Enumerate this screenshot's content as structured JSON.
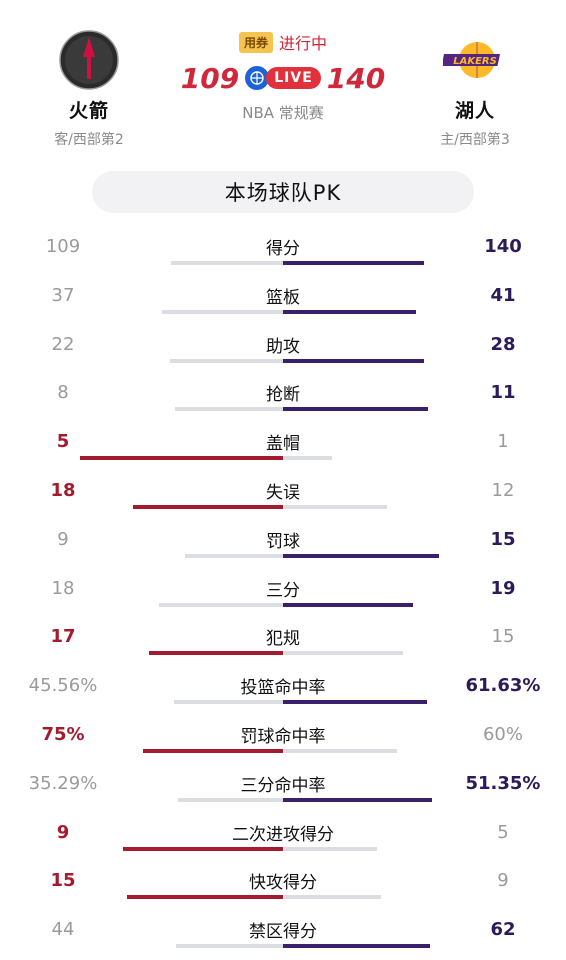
{
  "match": {
    "home": {
      "name": "火箭",
      "sub": "客/西部第2",
      "logo_icon": "rockets-logo"
    },
    "away": {
      "name": "湖人",
      "sub": "主/西部第3",
      "logo_icon": "lakers-logo"
    },
    "coupon": "用券",
    "status": "进行中",
    "home_score": "109",
    "away_score": "140",
    "live": "LIVE",
    "league": "NBA 常规赛"
  },
  "section_title": "本场球队PK",
  "colors": {
    "home": "#a51b2e",
    "away": "#3a1f6b",
    "muted": "#dcdce3"
  },
  "stats": [
    {
      "label": "得分",
      "left": "109",
      "right": "140",
      "lv": 109,
      "rv": 140
    },
    {
      "label": "篮板",
      "left": "37",
      "right": "41",
      "lv": 37,
      "rv": 41
    },
    {
      "label": "助攻",
      "left": "22",
      "right": "28",
      "lv": 22,
      "rv": 28
    },
    {
      "label": "抢断",
      "left": "8",
      "right": "11",
      "lv": 8,
      "rv": 11
    },
    {
      "label": "盖帽",
      "left": "5",
      "right": "1",
      "lv": 5,
      "rv": 1
    },
    {
      "label": "失误",
      "left": "18",
      "right": "12",
      "lv": 18,
      "rv": 12
    },
    {
      "label": "罚球",
      "left": "9",
      "right": "15",
      "lv": 9,
      "rv": 15
    },
    {
      "label": "三分",
      "left": "18",
      "right": "19",
      "lv": 18,
      "rv": 19
    },
    {
      "label": "犯规",
      "left": "17",
      "right": "15",
      "lv": 17,
      "rv": 15
    },
    {
      "label": "投篮命中率",
      "left": "45.56%",
      "right": "61.63%",
      "lv": 45.56,
      "rv": 61.63
    },
    {
      "label": "罚球命中率",
      "left": "75%",
      "right": "60%",
      "lv": 75,
      "rv": 60
    },
    {
      "label": "三分命中率",
      "left": "35.29%",
      "right": "51.35%",
      "lv": 35.29,
      "rv": 51.35
    },
    {
      "label": "二次进攻得分",
      "left": "9",
      "right": "5",
      "lv": 9,
      "rv": 5
    },
    {
      "label": "快攻得分",
      "left": "15",
      "right": "9",
      "lv": 15,
      "rv": 9
    },
    {
      "label": "禁区得分",
      "left": "44",
      "right": "62",
      "lv": 44,
      "rv": 62
    }
  ]
}
